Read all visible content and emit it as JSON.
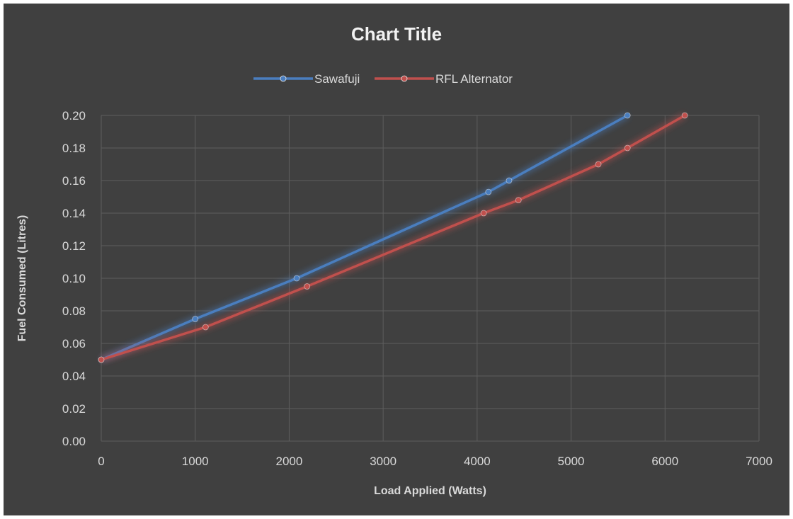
{
  "chart_data": {
    "type": "line",
    "title": "Chart Title",
    "xlabel": "Load Applied (Watts)",
    "ylabel": "Fuel Consumed (Litres)",
    "xlim": [
      0,
      7000
    ],
    "ylim": [
      0,
      0.2
    ],
    "x_ticks": [
      "0",
      "1000",
      "2000",
      "3000",
      "4000",
      "5000",
      "6000",
      "7000"
    ],
    "y_ticks": [
      "0.00",
      "0.02",
      "0.04",
      "0.06",
      "0.08",
      "0.10",
      "0.12",
      "0.14",
      "0.16",
      "0.18",
      "0.20"
    ],
    "grid": true,
    "legend_position": "top",
    "series": [
      {
        "name": "Sawafuji",
        "color": "#4a7ebf",
        "points": [
          [
            0,
            0.05
          ],
          [
            1000,
            0.075
          ],
          [
            2080,
            0.1
          ],
          [
            4120,
            0.153
          ],
          [
            4340,
            0.16
          ],
          [
            5600,
            0.2
          ]
        ]
      },
      {
        "name": "RFL Alternator",
        "color": "#c0504d",
        "points": [
          [
            0,
            0.05
          ],
          [
            1110,
            0.07
          ],
          [
            2190,
            0.095
          ],
          [
            4070,
            0.14
          ],
          [
            4440,
            0.148
          ],
          [
            5290,
            0.17
          ],
          [
            5600,
            0.18
          ],
          [
            6210,
            0.2
          ]
        ]
      }
    ]
  }
}
